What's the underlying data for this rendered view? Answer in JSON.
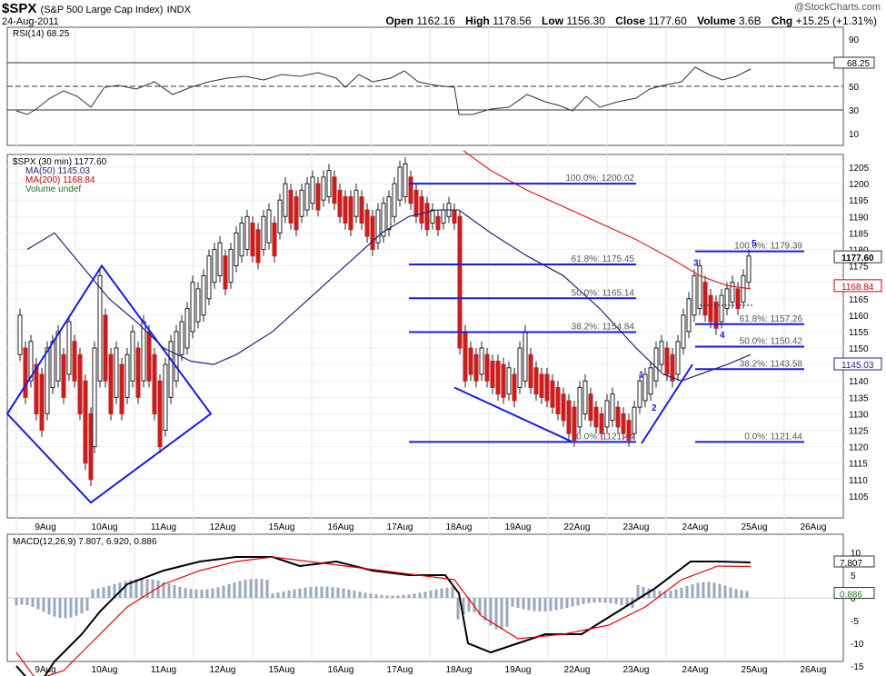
{
  "header": {
    "symbol": "$SPX",
    "name": "(S&P 500 Large Cap Index)",
    "exchange": "INDX",
    "date": "24-Aug-2011",
    "brand": "@StockCharts.com",
    "open_label": "Open",
    "open": "1162.16",
    "high_label": "High",
    "high": "1178.56",
    "low_label": "Low",
    "low": "1156.30",
    "close_label": "Close",
    "close": "1177.60",
    "volume_label": "Volume",
    "volume": "3.6B",
    "chg_label": "Chg",
    "chg": "+15.25 (+1.31%)"
  },
  "chart_data": [
    {
      "type": "line",
      "title": "RSI(14) 68.25",
      "ylim": [
        0,
        100
      ],
      "y_ticks": [
        10,
        30,
        50,
        70,
        90
      ],
      "levels": [
        30,
        50,
        70
      ],
      "last_value": "68.25",
      "x": [
        0,
        1,
        2,
        3,
        4,
        5,
        6,
        7,
        8,
        9,
        10,
        11,
        12,
        13,
        14,
        15,
        16,
        17,
        18,
        19,
        20,
        21,
        22,
        23,
        24,
        25,
        26,
        27,
        28,
        29,
        30,
        31,
        32,
        33,
        34,
        35,
        36,
        37,
        38,
        39,
        40,
        41,
        42,
        43,
        44,
        45,
        46,
        47,
        48,
        49,
        50,
        51,
        52,
        53,
        54,
        55,
        56,
        57,
        58,
        59,
        60,
        61,
        62,
        63,
        64,
        65,
        66,
        67,
        68,
        69,
        70,
        71,
        72,
        73,
        74,
        75,
        76,
        77,
        78,
        79,
        80,
        81,
        82,
        83,
        84,
        85,
        86,
        87,
        88,
        89,
        90,
        91,
        92,
        93,
        94,
        95,
        96,
        97,
        98,
        99,
        100,
        101,
        102,
        103,
        104,
        105,
        106,
        107,
        108,
        109,
        110,
        111,
        112,
        113,
        114,
        115,
        116,
        117,
        118,
        119,
        120,
        121,
        122,
        123,
        124,
        125,
        126,
        127,
        128,
        129,
        130,
        131,
        132,
        133,
        134,
        135,
        136,
        137,
        138,
        139,
        140,
        141,
        142,
        143,
        144,
        145,
        146,
        147,
        148,
        149,
        150,
        151,
        152,
        153,
        154,
        155,
        156,
        157,
        158,
        159,
        160,
        161,
        162,
        163,
        164,
        165,
        166,
        167,
        168,
        169,
        170,
        171,
        172,
        173,
        174,
        175,
        176,
        177,
        178,
        179,
        180,
        181,
        182,
        183,
        184,
        185,
        186,
        187,
        188,
        189,
        190,
        191,
        192,
        193,
        194,
        195,
        196,
        197,
        198,
        199,
        200,
        201,
        202,
        203,
        204,
        205,
        206,
        207,
        208,
        209,
        210,
        211,
        212,
        213,
        214,
        215,
        216,
        217,
        218,
        219,
        220,
        221,
        222,
        223,
        224,
        225,
        226,
        227,
        228,
        229,
        230,
        231,
        232,
        233,
        234,
        235,
        236,
        237,
        238,
        239,
        240,
        241,
        242,
        243,
        244,
        245,
        246,
        247,
        248,
        249,
        250,
        251,
        252,
        253,
        254,
        255,
        256,
        257,
        258,
        259,
        260,
        261,
        262,
        263,
        264,
        265,
        266,
        267,
        268,
        269,
        270,
        271,
        272,
        273,
        274,
        275,
        276,
        277,
        278,
        279,
        280,
        281,
        282,
        283,
        284,
        285,
        286,
        287,
        288,
        289,
        290,
        291,
        292,
        293,
        294,
        295,
        296,
        297,
        298,
        299,
        300,
        301,
        302,
        303,
        304,
        305,
        306,
        307,
        308,
        309,
        310,
        311,
        312,
        313,
        314,
        315,
        316,
        317,
        318,
        319,
        320,
        321,
        322,
        323,
        324,
        325,
        326,
        327,
        328,
        329,
        330,
        331,
        332,
        333,
        334,
        335,
        336,
        337,
        338,
        339,
        340,
        341,
        342,
        343,
        344,
        345,
        346,
        347,
        348,
        349,
        350,
        351,
        352,
        353,
        354,
        355,
        356,
        357,
        358,
        359,
        360,
        361,
        362,
        363,
        364,
        365,
        366,
        367,
        368,
        369,
        370,
        371,
        372,
        373,
        374,
        375,
        376,
        377,
        378,
        379,
        380,
        381,
        382,
        383,
        384,
        385,
        386,
        387,
        388,
        389,
        390,
        391,
        392,
        393,
        394,
        395,
        396,
        397,
        398,
        399,
        400,
        401,
        402,
        403,
        404,
        405,
        406,
        407,
        408,
        409,
        410,
        411,
        412,
        413,
        414,
        415,
        416,
        417,
        418,
        419,
        420,
        421,
        422,
        423,
        424,
        425,
        426,
        427,
        428,
        429,
        430,
        431,
        432,
        433,
        434,
        435,
        436,
        437,
        438,
        439,
        440,
        441,
        442,
        443,
        444,
        445,
        446,
        447,
        448,
        449,
        450,
        451,
        452,
        453,
        454,
        455,
        456,
        457,
        458,
        459,
        460,
        461,
        462,
        463,
        464,
        465,
        466,
        467,
        468,
        469,
        470,
        471,
        472,
        473,
        474,
        475,
        476,
        477,
        478,
        479,
        480,
        481,
        482,
        483,
        484,
        485,
        486,
        487,
        488,
        489,
        490,
        491,
        492,
        493,
        494,
        495,
        496,
        497,
        498,
        499,
        500,
        501,
        502,
        503,
        504,
        505,
        506,
        507,
        508,
        509,
        510,
        511,
        512,
        513,
        514,
        515,
        516,
        517,
        518,
        519,
        520,
        521,
        522,
        523,
        524,
        525,
        526,
        527,
        528,
        529,
        530,
        531,
        532,
        533,
        534,
        535,
        536,
        537,
        538,
        539,
        540,
        541,
        542,
        543,
        544,
        545,
        546,
        547,
        548,
        549,
        550,
        551,
        552,
        553,
        554,
        555,
        556,
        557,
        558,
        559,
        560,
        561,
        562,
        563,
        564,
        565,
        566,
        567,
        568,
        569,
        570,
        571,
        572,
        573,
        574,
        575,
        576,
        577,
        578,
        579,
        580,
        581,
        582,
        583,
        584,
        585,
        586,
        587,
        588,
        589,
        590,
        591,
        592,
        593,
        594,
        595,
        596,
        597,
        598,
        599,
        600,
        601,
        602,
        603,
        604,
        605,
        606,
        607,
        608,
        609,
        610,
        611,
        612,
        613,
        614,
        615,
        616,
        617,
        618,
        619,
        620,
        621,
        622,
        623,
        624,
        625,
        626,
        627,
        628,
        629,
        630,
        631,
        632,
        633,
        634,
        635,
        636,
        637,
        638,
        639,
        640,
        641,
        642,
        643,
        644,
        645,
        646,
        647,
        648,
        649,
        650,
        651,
        652,
        653,
        654,
        655,
        656,
        657,
        658,
        659,
        660,
        661,
        662,
        663,
        664,
        665,
        666,
        667,
        668,
        669,
        670,
        671,
        672,
        673,
        674,
        675,
        676,
        677,
        678,
        679,
        680,
        681,
        682,
        683,
        684,
        685,
        686,
        687,
        688,
        689,
        690,
        691,
        692,
        693,
        694,
        695,
        696,
        697,
        698,
        699,
        700,
        701,
        702,
        703,
        704,
        705,
        706,
        707,
        708,
        709,
        710,
        711,
        712,
        713,
        714,
        715,
        716,
        717,
        718,
        719,
        720,
        721,
        722,
        723,
        724,
        725,
        726,
        727,
        728,
        729,
        730,
        731,
        732,
        733,
        734,
        735,
        736,
        737,
        738,
        739,
        740,
        741,
        742,
        743,
        744,
        745,
        746,
        747,
        748,
        749,
        750,
        751,
        752,
        753,
        754,
        755,
        756,
        757,
        758,
        759,
        760,
        761,
        762,
        763,
        764,
        765,
        766,
        767,
        768,
        769,
        770,
        771,
        772,
        773,
        774,
        775,
        776,
        777,
        778,
        779,
        780,
        781,
        782,
        783,
        784,
        785,
        786,
        787,
        788,
        789,
        790,
        791,
        792,
        793,
        794,
        795,
        796,
        797,
        798,
        799,
        800,
        801,
        802,
        803,
        804,
        805,
        806,
        807,
        808,
        809,
        810,
        811,
        812,
        813,
        814,
        815,
        816,
        817,
        818,
        819,
        820,
        821,
        822,
        823,
        824,
        825,
        826,
        827,
        828,
        829,
        830,
        831,
        832,
        833,
        834,
        835,
        836,
        837,
        838,
        839,
        840,
        841,
        842,
        843,
        844,
        845,
        846,
        847,
        848,
        849,
        850,
        851,
        852,
        853,
        854,
        855,
        856,
        857,
        858,
        859,
        860,
        861,
        862,
        863,
        864,
        865,
        866,
        867,
        868,
        869,
        870,
        871,
        872,
        873,
        874,
        875,
        876,
        877,
        878,
        879,
        880,
        881,
        882,
        883,
        884,
        885,
        886,
        887,
        888,
        889,
        890,
        891,
        892,
        893,
        894,
        895,
        896,
        897,
        898,
        899,
        900,
        901,
        902,
        903,
        904,
        905,
        906,
        907,
        908,
        909,
        910,
        911,
        912,
        913,
        914,
        915,
        916,
        917,
        918,
        919,
        920,
        921,
        922,
        923,
        924,
        925,
        926,
        927,
        928,
        929,
        930,
        931,
        932,
        933,
        934,
        935,
        936,
        937,
        938,
        939,
        940,
        941,
        942,
        943,
        944,
        945,
        946,
        947,
        948,
        949,
        950,
        951,
        952,
        953,
        954,
        955,
        956,
        957,
        958,
        959,
        960,
        961,
        962,
        963,
        964,
        965,
        966,
        967,
        968,
        969,
        970,
        971,
        972,
        973,
        974,
        975,
        976,
        977,
        978,
        979,
        980,
        981,
        982,
        983,
        984,
        985,
        986,
        987,
        988,
        989,
        990,
        991,
        992,
        993,
        994,
        995,
        996,
        997,
        998,
        999
      ],
      "note_rsi": ""
    }
  ]
}
